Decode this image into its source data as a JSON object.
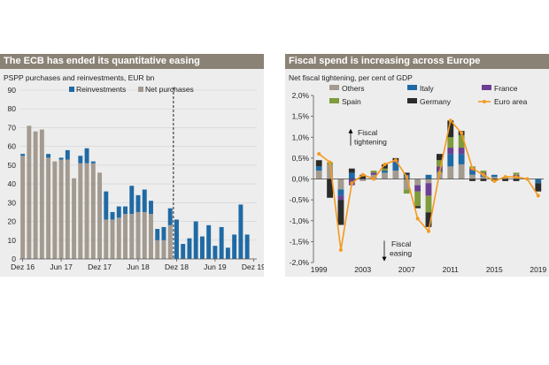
{
  "chart_data": [
    {
      "type": "bar",
      "stacked": true,
      "title": "The ECB has ended its quantitative easing",
      "subtitle": "PSPP purchases and reinvestments, EUR bn",
      "xlabel": "",
      "ylabel": "",
      "ylim": [
        0,
        90
      ],
      "yticks": [
        0,
        10,
        20,
        30,
        40,
        50,
        60,
        70,
        80,
        90
      ],
      "xtick_labels": [
        "Dez 16",
        "Jun 17",
        "Dez 17",
        "Jun 18",
        "Dez 18",
        "Jun 19",
        "Dez 19"
      ],
      "xtick_positions": [
        0,
        6,
        12,
        18,
        24,
        30,
        36
      ],
      "grid": true,
      "legend": "top",
      "divider_index": 23.5,
      "series": [
        {
          "name": "Net purchases",
          "color": "#a39a90",
          "values": [
            55,
            71,
            68,
            69,
            54,
            52,
            53,
            53,
            43,
            51,
            51,
            51,
            46,
            21,
            21,
            22,
            24,
            24,
            25,
            25,
            24,
            10,
            10,
            18,
            0,
            0,
            0,
            0,
            0,
            0,
            0,
            0,
            0,
            0,
            0,
            0,
            0
          ]
        },
        {
          "name": "Reinvestments",
          "color": "#1f6aa5",
          "values": [
            1,
            0,
            0,
            0,
            2,
            0,
            1,
            5,
            0,
            4,
            8,
            1,
            0,
            15,
            4,
            6,
            4,
            15,
            9,
            12,
            7,
            6,
            7,
            9,
            21,
            8,
            11,
            20,
            12,
            18,
            7,
            17,
            6,
            13,
            29,
            13,
            0
          ]
        }
      ]
    },
    {
      "type": "bar",
      "stacked": true,
      "title": "Fiscal spend is increasing across Europe",
      "subtitle": "Net fiscal tightening, per cent of GDP",
      "xlabel": "",
      "ylabel": "",
      "ylim": [
        -2.0,
        2.0
      ],
      "yticks": [
        2.0,
        1.5,
        1.0,
        0.5,
        0.0,
        -0.5,
        -1.0,
        -1.5,
        -2.0
      ],
      "ytick_labels": [
        "2,0%",
        "1,5%",
        "1,0%",
        "0,5%",
        "0,0%",
        "-0,5%",
        "-1,0%",
        "-1,5%",
        "-2,0%"
      ],
      "categories": [
        1999,
        2000,
        2001,
        2002,
        2003,
        2004,
        2005,
        2006,
        2007,
        2008,
        2009,
        2010,
        2011,
        2012,
        2013,
        2014,
        2015,
        2016,
        2017,
        2018,
        2019
      ],
      "xtick_labels": [
        "1999",
        "2003",
        "2007",
        "2011",
        "2015",
        "2019"
      ],
      "xtick_values": [
        1999,
        2003,
        2007,
        2011,
        2015,
        2019
      ],
      "grid": false,
      "legend": "top",
      "annotations": [
        {
          "text": [
            "Fiscal",
            "tightening"
          ],
          "direction": "up"
        },
        {
          "text": [
            "Fiscal",
            "easing"
          ],
          "direction": "down"
        }
      ],
      "series": [
        {
          "name": "Others",
          "color": "#a39a90",
          "values": [
            0.2,
            0.35,
            -0.25,
            0.0,
            -0.05,
            0.1,
            0.15,
            0.2,
            -0.25,
            -0.15,
            -0.1,
            0.15,
            0.3,
            0.35,
            0.1,
            0.05,
            0.05,
            0.05,
            0.05,
            0.0,
            0.0
          ]
        },
        {
          "name": "Italy",
          "color": "#1f6aa5",
          "values": [
            0.1,
            0.0,
            -0.15,
            0.15,
            0.0,
            0.0,
            0.05,
            0.2,
            0.1,
            0.0,
            0.1,
            0.05,
            0.3,
            0.25,
            0.1,
            0.05,
            0.05,
            0.0,
            0.0,
            0.0,
            -0.1
          ]
        },
        {
          "name": "France",
          "color": "#6b3f93",
          "values": [
            0.0,
            0.0,
            -0.1,
            -0.15,
            0.0,
            0.05,
            0.0,
            0.05,
            0.0,
            -0.15,
            -0.3,
            0.1,
            0.15,
            0.15,
            0.05,
            0.05,
            0.0,
            0.0,
            0.05,
            0.0,
            0.0
          ]
        },
        {
          "name": "Spain",
          "color": "#7f9b3b",
          "values": [
            0.0,
            0.05,
            0.0,
            0.0,
            0.0,
            0.05,
            0.05,
            0.0,
            -0.1,
            -0.35,
            -0.4,
            0.15,
            0.25,
            0.3,
            0.05,
            0.05,
            0.0,
            0.0,
            0.05,
            0.0,
            0.0
          ]
        },
        {
          "name": "Germany",
          "color": "#2b2b2b",
          "values": [
            0.15,
            -0.45,
            -0.6,
            0.1,
            0.1,
            0.0,
            0.1,
            0.05,
            0.05,
            -0.05,
            -0.35,
            0.15,
            0.4,
            0.1,
            -0.05,
            -0.05,
            -0.05,
            -0.05,
            -0.05,
            0.0,
            -0.2
          ]
        },
        {
          "name": "Euro area",
          "type": "line",
          "color": "#f39a1f",
          "values": [
            0.6,
            0.4,
            -1.7,
            -0.1,
            0.1,
            0.0,
            0.35,
            0.45,
            0.05,
            -0.95,
            -1.25,
            0.15,
            1.4,
            1.1,
            0.25,
            0.1,
            -0.05,
            0.05,
            0.05,
            0.0,
            -0.4
          ]
        }
      ]
    }
  ]
}
